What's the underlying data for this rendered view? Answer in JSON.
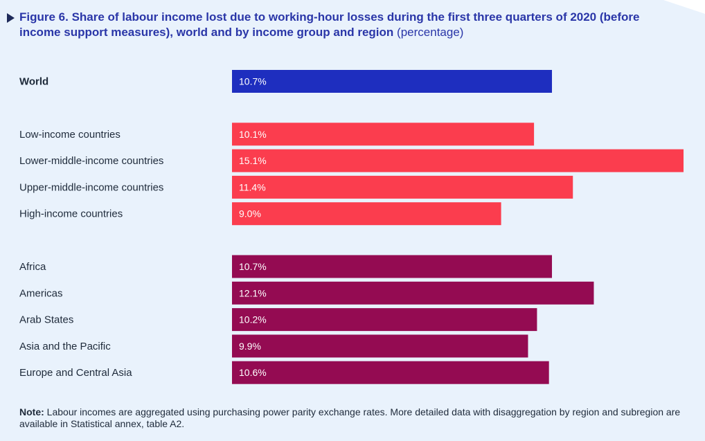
{
  "title": {
    "main": "Figure 6.  Share of labour income lost due to working-hour losses during the first three quarters of 2020 (before income support measures), world and by income group and region",
    "unit": "(percentage)"
  },
  "note": {
    "label": "Note:",
    "text": "Labour incomes are aggregated using purchasing power parity exchange rates. More detailed data with disaggregation by region and subregion are available in Statistical annex, table A2."
  },
  "colors": {
    "world": "#1e2ebf",
    "income": "#fb3d4e",
    "region": "#940b52",
    "background": "#e9f2fc"
  },
  "chart_data": {
    "type": "bar",
    "orientation": "horizontal",
    "title": "Figure 6.  Share of labour income lost due to working-hour losses during the first three quarters of 2020 (before income support measures), world and by income group and region",
    "xlabel": "",
    "ylabel": "",
    "xlim": [
      0,
      15.1
    ],
    "grid": false,
    "legend": "none",
    "groups": [
      {
        "group": "world",
        "items": [
          {
            "category": "World",
            "value": 10.7,
            "label": "10.7%"
          }
        ]
      },
      {
        "group": "income",
        "items": [
          {
            "category": "Low-income countries",
            "value": 10.1,
            "label": "10.1%"
          },
          {
            "category": "Lower-middle-income countries",
            "value": 15.1,
            "label": "15.1%"
          },
          {
            "category": "Upper-middle-income countries",
            "value": 11.4,
            "label": "11.4%"
          },
          {
            "category": "High-income countries",
            "value": 9.0,
            "label": "9.0%"
          }
        ]
      },
      {
        "group": "region",
        "items": [
          {
            "category": "Africa",
            "value": 10.7,
            "label": "10.7%"
          },
          {
            "category": "Americas",
            "value": 12.1,
            "label": "12.1%"
          },
          {
            "category": "Arab States",
            "value": 10.2,
            "label": "10.2%"
          },
          {
            "category": "Asia and the Pacific",
            "value": 9.9,
            "label": "9.9%"
          },
          {
            "category": "Europe and Central Asia",
            "value": 10.6,
            "label": "10.6%"
          }
        ]
      }
    ]
  }
}
